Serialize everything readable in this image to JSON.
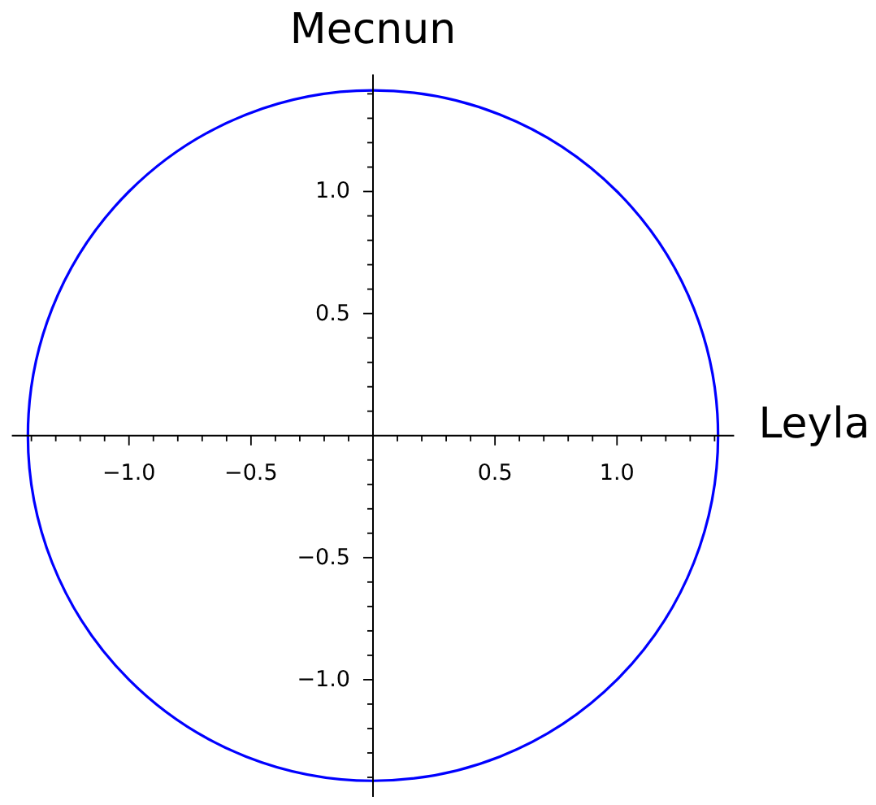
{
  "chart_data": {
    "type": "line",
    "xlabel": "Leyla",
    "ylabel": "Mecnun",
    "xlim": [
      -1.48,
      1.48
    ],
    "ylim": [
      -1.48,
      1.48
    ],
    "xticks": [
      {
        "value": -1.4,
        "label": null
      },
      {
        "value": -1.3,
        "label": null
      },
      {
        "value": -1.2,
        "label": null
      },
      {
        "value": -1.1,
        "label": null
      },
      {
        "value": -1,
        "label": "−1.0"
      },
      {
        "value": -0.9,
        "label": null
      },
      {
        "value": -0.8,
        "label": null
      },
      {
        "value": -0.7,
        "label": null
      },
      {
        "value": -0.6,
        "label": null
      },
      {
        "value": -0.5,
        "label": "−0.5"
      },
      {
        "value": -0.4,
        "label": null
      },
      {
        "value": -0.3,
        "label": null
      },
      {
        "value": -0.2,
        "label": null
      },
      {
        "value": -0.1,
        "label": null
      },
      {
        "value": 0.1,
        "label": null
      },
      {
        "value": 0.2,
        "label": null
      },
      {
        "value": 0.3,
        "label": null
      },
      {
        "value": 0.4,
        "label": null
      },
      0.5,
      {
        "value": 0.6,
        "label": null
      },
      {
        "value": 0.7,
        "label": null
      },
      {
        "value": 0.8,
        "label": null
      },
      {
        "value": 0.9,
        "label": null
      },
      {
        "value": 1,
        "label": "1.0"
      },
      {
        "value": 1.1,
        "label": null
      },
      {
        "value": 1.2,
        "label": null
      },
      {
        "value": 1.3,
        "label": null
      },
      {
        "value": 1.4,
        "label": null
      }
    ],
    "yticks": [
      {
        "value": -1.4,
        "label": null
      },
      {
        "value": -1.3,
        "label": null
      },
      {
        "value": -1.2,
        "label": null
      },
      {
        "value": -1.1,
        "label": null
      },
      {
        "value": -1,
        "label": "−1.0"
      },
      {
        "value": -0.9,
        "label": null
      },
      {
        "value": -0.8,
        "label": null
      },
      {
        "value": -0.7,
        "label": null
      },
      {
        "value": -0.6,
        "label": null
      },
      {
        "value": -0.5,
        "label": "−0.5"
      },
      {
        "value": -0.4,
        "label": null
      },
      {
        "value": -0.3,
        "label": null
      },
      {
        "value": -0.2,
        "label": null
      },
      {
        "value": -0.1,
        "label": null
      },
      {
        "value": 0.1,
        "label": null
      },
      {
        "value": 0.2,
        "label": null
      },
      {
        "value": 0.3,
        "label": null
      },
      {
        "value": 0.4,
        "label": null
      },
      0.5,
      {
        "value": 0.6,
        "label": null
      },
      {
        "value": 0.7,
        "label": null
      },
      {
        "value": 0.8,
        "label": null
      },
      {
        "value": 0.9,
        "label": null
      },
      {
        "value": 1,
        "label": "1.0"
      },
      {
        "value": 1.1,
        "label": null
      },
      {
        "value": 1.2,
        "label": null
      },
      {
        "value": 1.3,
        "label": null
      },
      {
        "value": 1.4,
        "label": null
      }
    ]
  }
}
